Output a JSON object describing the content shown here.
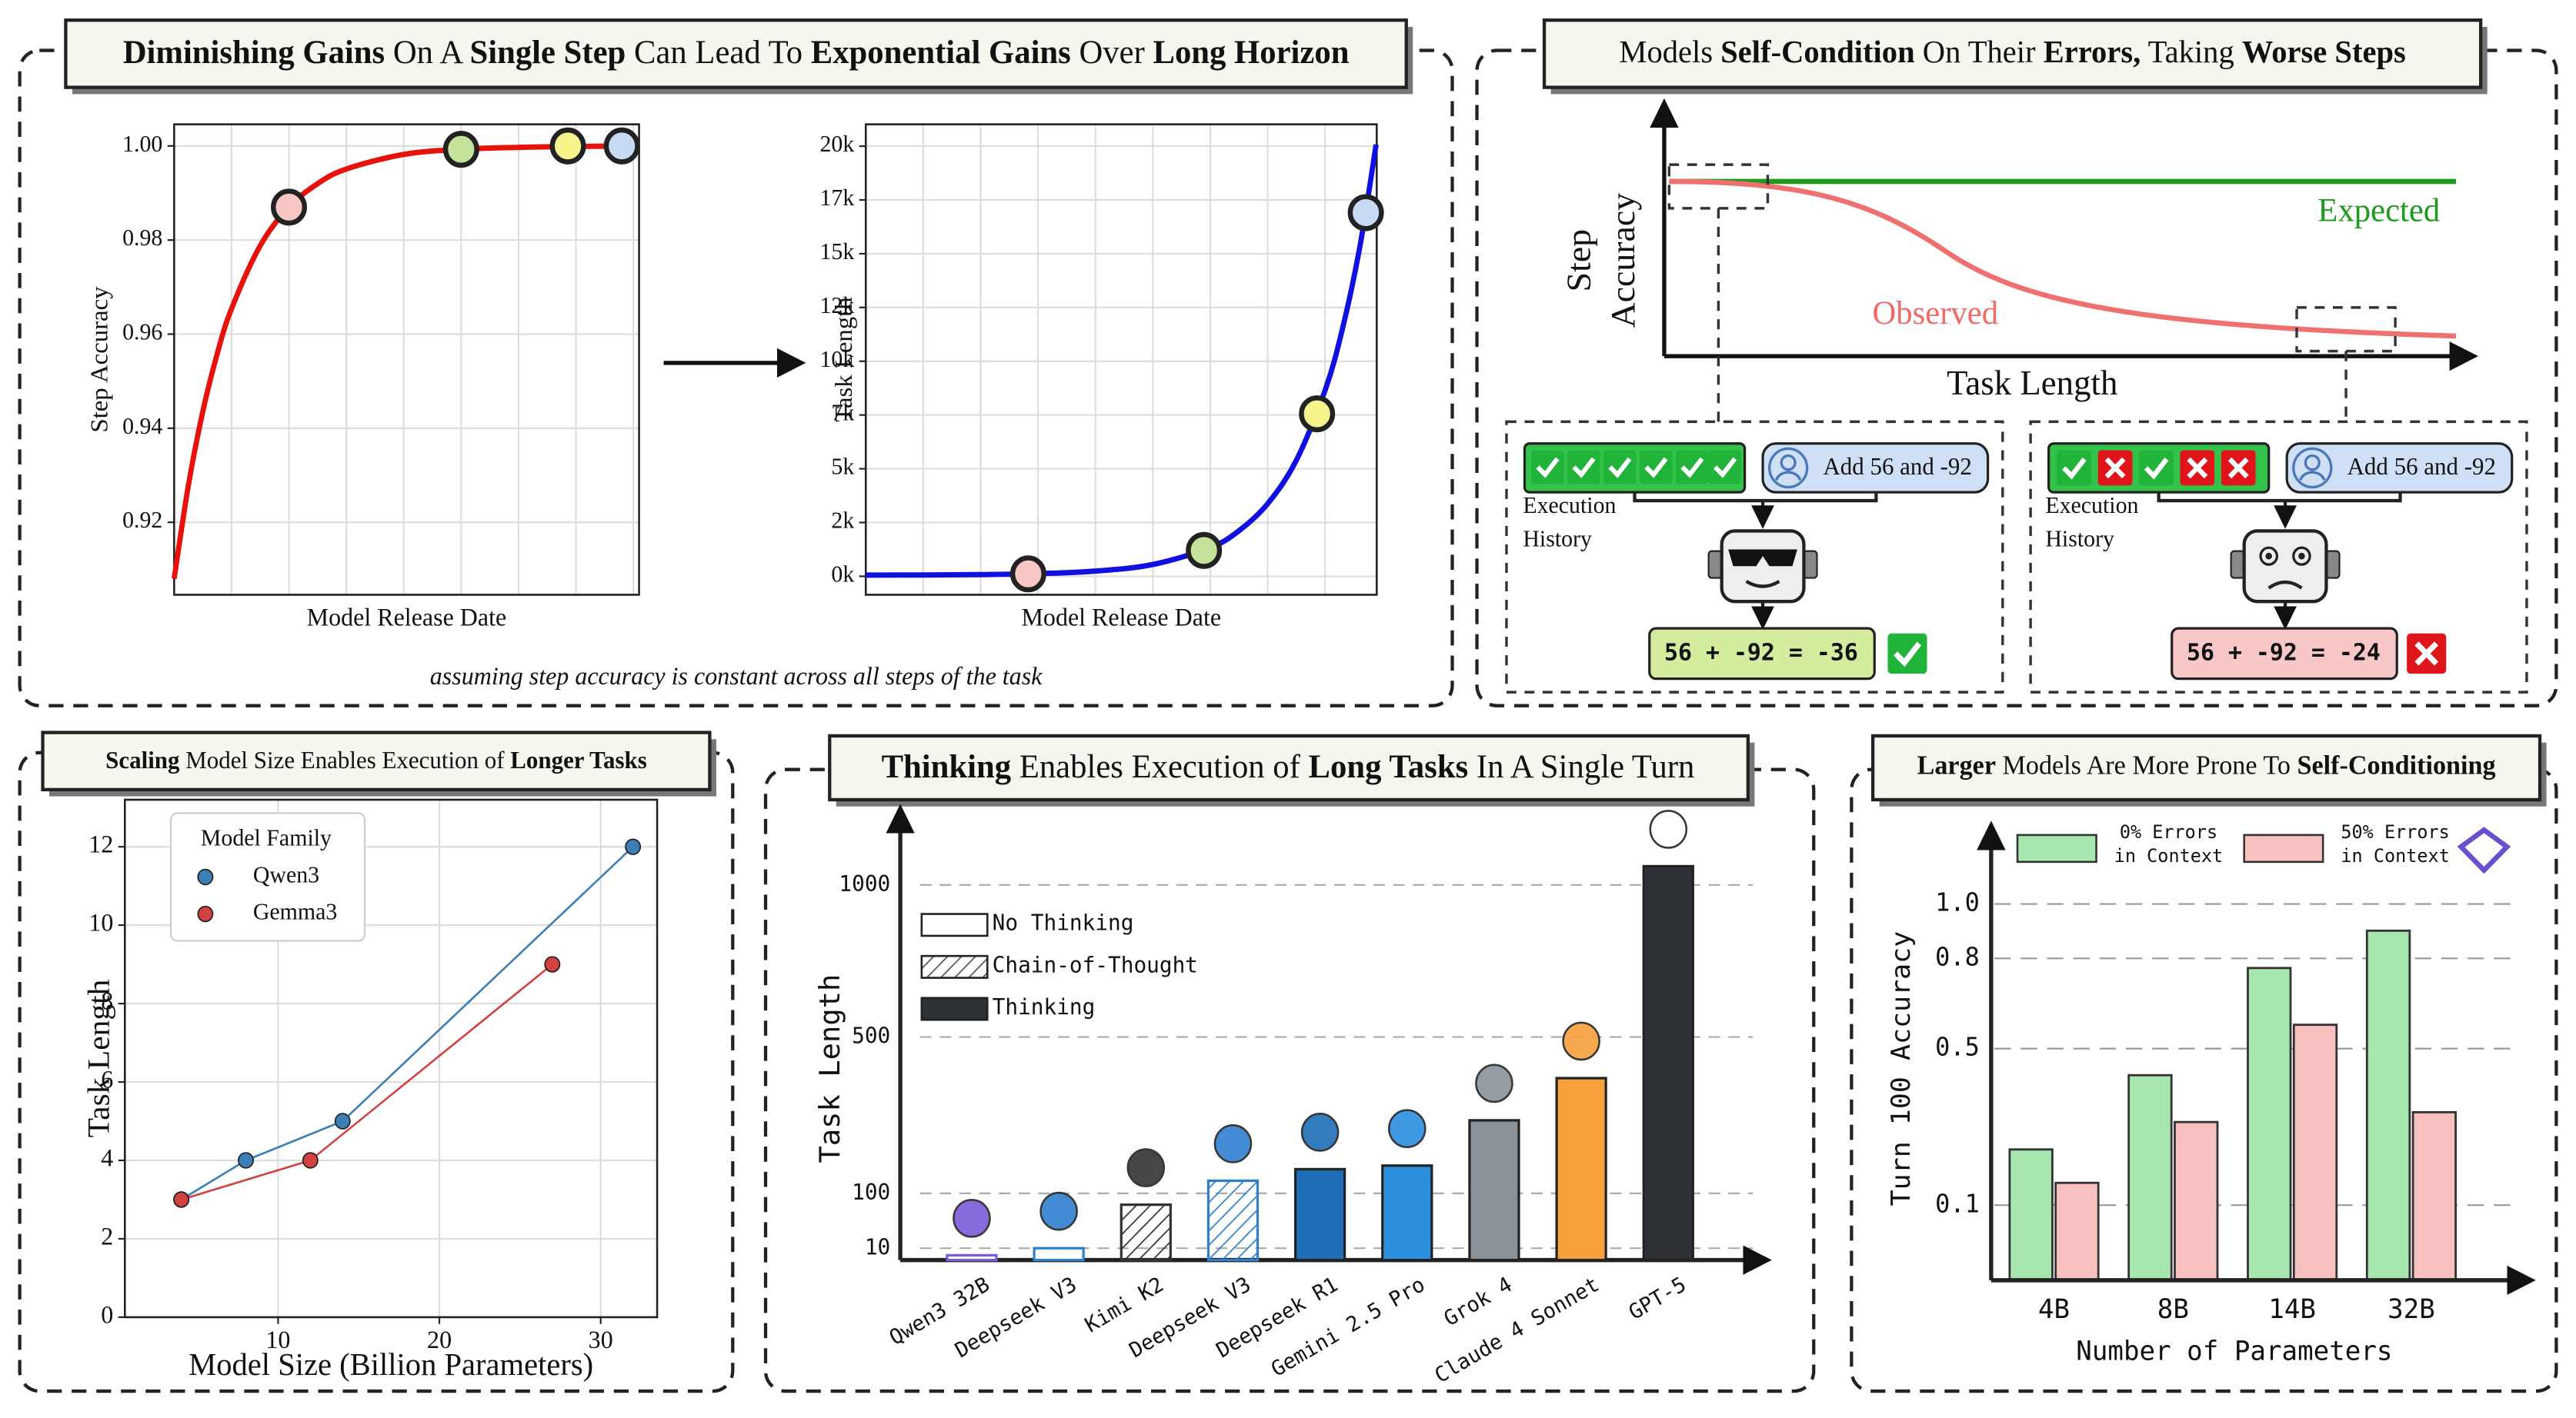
{
  "chart_data": [
    {
      "type": "line",
      "x_label": "Model Release Date",
      "y_label": "Step Accuracy",
      "smooth": true,
      "xlim": [
        0,
        8.1
      ],
      "ylim": [
        0.9046,
        1.0046
      ],
      "xgrid": [
        1,
        2,
        3,
        4,
        5,
        6,
        7,
        8
      ],
      "yticks": [
        0.92,
        0.94,
        0.96,
        0.98,
        {
          "value": 1,
          "label": "1.00"
        }
      ],
      "grid": true,
      "series": [
        {
          "color": "#e8120c",
          "x": [
            0,
            0.25,
            0.5,
            0.75,
            1,
            1.5,
            2,
            2.5,
            3,
            4,
            5,
            6,
            7,
            8.1
          ],
          "values": [
            0.908,
            0.928,
            0.9436,
            0.9558,
            0.9654,
            0.9788,
            0.987,
            0.992,
            0.9951,
            0.9982,
            0.9993,
            0.9997,
            0.9999,
            1.0
          ]
        }
      ],
      "points": {
        "x": [
          2,
          5,
          6.86,
          7.8
        ],
        "values": [
          0.987,
          0.9993,
          1.0,
          1.0
        ],
        "colors": [
          "#f9c6c6",
          "#c5e29a",
          "#f6f48a",
          "#c7daf4"
        ]
      }
    },
    {
      "type": "line",
      "x_label": "Model Release Date",
      "y_label": "Task Length",
      "smooth": true,
      "xlim": [
        0,
        8.9
      ],
      "ylim": [
        -859,
        21016
      ],
      "xgrid": [
        1,
        2,
        3,
        4,
        5,
        6,
        7,
        8
      ],
      "yticks": [
        {
          "value": 0,
          "label": "0k"
        },
        {
          "value": 2500,
          "label": "2k"
        },
        {
          "value": 5000,
          "label": "5k"
        },
        {
          "value": 7500,
          "label": "7k"
        },
        {
          "value": 10000,
          "label": "10k"
        },
        {
          "value": 12500,
          "label": "12k"
        },
        {
          "value": 15000,
          "label": "15k"
        },
        {
          "value": 17500,
          "label": "17k"
        },
        {
          "value": 20000,
          "label": "20k"
        }
      ],
      "grid": true,
      "series": [
        {
          "color": "#1010e0",
          "x": [
            0,
            1,
            2,
            3,
            4,
            5,
            6,
            6.5,
            7,
            7.5,
            8,
            8.3,
            8.6,
            8.89
          ],
          "values": [
            54,
            61,
            79,
            124,
            242,
            547,
            1335,
            2117,
            3374,
            5395,
            8641,
            11471,
            15229,
            20079
          ]
        }
      ],
      "points": {
        "x": [
          2.83,
          5.89,
          7.86,
          8.71
        ],
        "values": [
          113,
          1202,
          7554,
          16910
        ],
        "colors": [
          "#f9c6c6",
          "#c5e29a",
          "#f6f48a",
          "#c7daf4"
        ]
      }
    },
    {
      "type": "line",
      "title": [
        {
          "text": "Scaling",
          "bold": true
        },
        {
          "text": " Model Size Enables Execution of ",
          "bold": false
        },
        {
          "text": "Longer Tasks",
          "bold": true
        }
      ],
      "x_label": "Model Size (Billion Parameters)",
      "y_label": "Task Length",
      "marker": "o",
      "xlim": [
        0.5,
        33.5
      ],
      "ylim": [
        0,
        13.2
      ],
      "xticks": [
        10,
        20,
        30
      ],
      "yticks": [
        0,
        2,
        4,
        6,
        8,
        10,
        12
      ],
      "grid": true,
      "legend_title": "Model Family",
      "legend": "upper left",
      "series": [
        {
          "name": "Qwen3",
          "color": "#3b7fb6",
          "x": [
            4,
            8,
            14,
            32
          ],
          "values": [
            3,
            4,
            5,
            12
          ]
        },
        {
          "name": "Gemma3",
          "color": "#d0413f",
          "x": [
            4,
            12,
            27
          ],
          "values": [
            3,
            4,
            9
          ]
        }
      ]
    },
    {
      "type": "bar",
      "title": [
        {
          "text": "Thinking",
          "bold": true
        },
        {
          "text": " Enables Execution of ",
          "bold": false
        },
        {
          "text": "Long Tasks",
          "bold": true
        },
        {
          "text": " In A Single Turn",
          "bold": false
        }
      ],
      "y_label": "Task Length",
      "yscale": "pow",
      "yexponent": 0.75,
      "ylim": [
        0,
        1200
      ],
      "yticks": [
        10,
        100,
        500,
        1000
      ],
      "grid": true,
      "categories": [
        "Qwen3 32B",
        "Deepseek V3",
        "Kimi K2",
        "Deepseek V3",
        "Deepseek R1",
        "Gemini 2.5 Pro",
        "Grok 4",
        "Claude 4 Sonnet",
        "GPT-5"
      ],
      "series": [
        {
          "name": "No Thinking",
          "fill": "none",
          "color": "#333333",
          "values": [
            3,
            10,
            null,
            null,
            null,
            null,
            null,
            null,
            null
          ],
          "colors": [
            "#7b5cd6",
            "#2f7fd0",
            null,
            null,
            null,
            null,
            null,
            null,
            null
          ]
        },
        {
          "name": "Chain-of-Thought",
          "fill": "hatch",
          "color": "#555555",
          "values": [
            null,
            null,
            78,
            126,
            null,
            null,
            null,
            null,
            null
          ],
          "colors": [
            null,
            null,
            "#333333",
            "#2f7fd0",
            null,
            null,
            null,
            null,
            null
          ]
        },
        {
          "name": "Thinking",
          "fill": "solid",
          "color": "#2e3135",
          "values": [
            null,
            null,
            null,
            null,
            151,
            159,
            268,
            381,
            1067
          ],
          "colors": [
            null,
            null,
            null,
            null,
            "#1e6fb8",
            "#2b8fe0",
            "#8a9298",
            "#f6a03d",
            "#2e3135"
          ]
        }
      ]
    },
    {
      "type": "grouped_bar",
      "title": [
        {
          "text": "Larger",
          "bold": true
        },
        {
          "text": " Models Are More Prone To ",
          "bold": false
        },
        {
          "text": "Self-Conditioning",
          "bold": true
        }
      ],
      "x_label": "Number of Parameters",
      "y_label": "Turn 100 Accuracy",
      "yscale": "pow",
      "yexponent": 0.7,
      "ylim": [
        0,
        1.32
      ],
      "yticks": [
        0.1,
        0.5,
        0.8,
        {
          "value": 1,
          "label": "1.0"
        }
      ],
      "grid": true,
      "categories": [
        "4B",
        "8B",
        "14B",
        "32B"
      ],
      "series": [
        {
          "name": "0% Errors in Context",
          "color": "#a8e6b0",
          "values": [
            0.221,
            0.42,
            0.766,
            0.9
          ]
        },
        {
          "name": "50% Errors in Context",
          "color": "#f9c0c0",
          "values": [
            0.145,
            0.29,
            0.575,
            0.316
          ]
        }
      ]
    }
  ],
  "panels": {
    "top_left": {
      "title": [
        {
          "text": "Diminishing Gains",
          "bold": true
        },
        {
          "text": " On A ",
          "bold": false
        },
        {
          "text": "Single Step",
          "bold": true
        },
        {
          "text": " Can Lead To ",
          "bold": false
        },
        {
          "text": "Exponential Gains",
          "bold": true
        },
        {
          "text": " Over ",
          "bold": false
        },
        {
          "text": "Long Horizon",
          "bold": true
        }
      ],
      "note": "assuming step accuracy is constant across all steps of the task"
    },
    "top_right": {
      "title": [
        {
          "text": "Models ",
          "bold": false
        },
        {
          "text": "Self-Condition",
          "bold": true
        },
        {
          "text": " On Their ",
          "bold": false
        },
        {
          "text": "Errors,",
          "bold": true
        },
        {
          "text": " Taking ",
          "bold": false
        },
        {
          "text": "Worse Steps",
          "bold": true
        }
      ],
      "y_label": [
        "Step",
        "Accuracy"
      ],
      "x_label": "Task Length",
      "expected": "Expected",
      "observed": "Observed",
      "left": {
        "history_label": [
          "Execution",
          "History"
        ],
        "prompt": "Add 56 and -92",
        "output": "56 + -92 = -36"
      },
      "right": {
        "history_label": [
          "Execution",
          "History"
        ],
        "prompt": "Add 56 and -92",
        "output": "56 + -92 = -24"
      }
    }
  }
}
